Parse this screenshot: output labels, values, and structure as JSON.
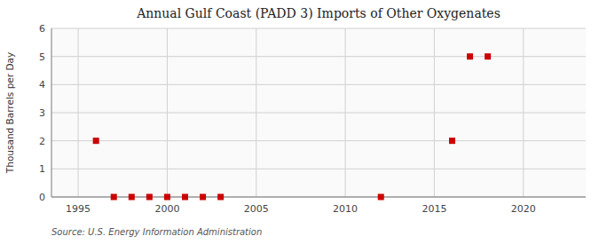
{
  "chart_data": {
    "type": "scatter",
    "title": "Annual Gulf Coast (PADD 3) Imports of Other Oxygenates",
    "ylabel": "Thousand Barrels per Day",
    "source": "Source: U.S. Energy Information Administration",
    "x": [
      1996,
      1997,
      1998,
      1999,
      2000,
      2001,
      2002,
      2003,
      2012,
      2016,
      2017,
      2018
    ],
    "values": [
      2.0,
      0.0,
      0.0,
      0.0,
      0.0,
      0.0,
      0.0,
      0.0,
      0.0,
      2.0,
      5.0,
      5.0
    ],
    "color": "#cc0000",
    "marker": "square",
    "xlim": [
      1993.5,
      2023.5
    ],
    "ylim": [
      0,
      6
    ],
    "xticks": [
      1995,
      2000,
      2005,
      2010,
      2015,
      2020
    ],
    "yticks": [
      0,
      1,
      2,
      3,
      4,
      5,
      6
    ],
    "grid": true
  }
}
